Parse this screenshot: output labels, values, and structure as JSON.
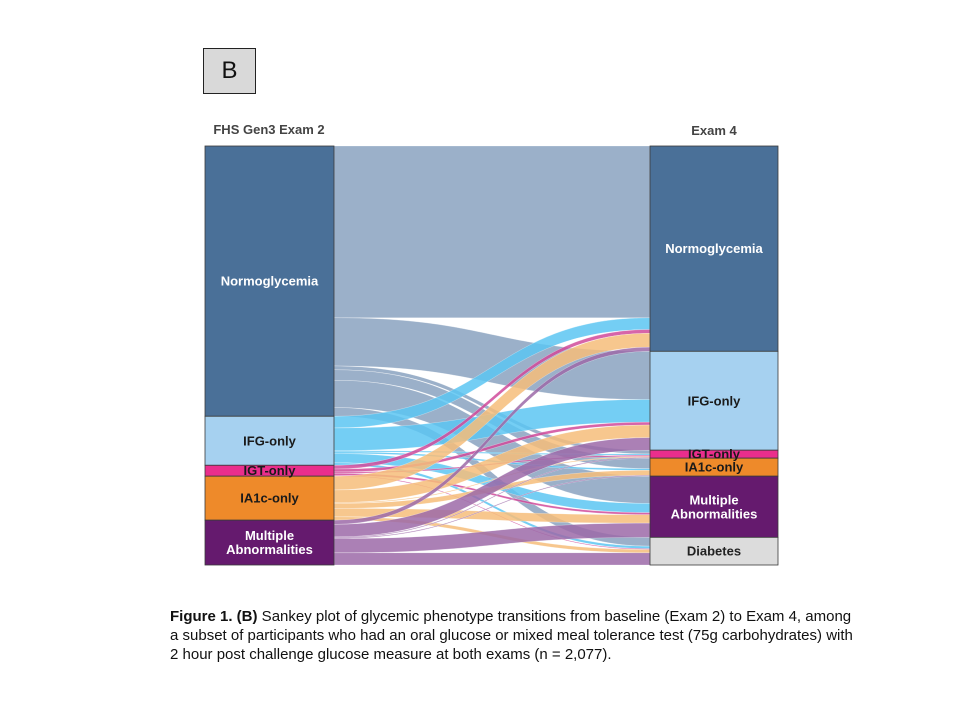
{
  "panel_label": "B",
  "caption": {
    "bold": "Figure 1. (B)",
    "text": " Sankey plot of glycemic phenotype transitions from baseline (Exam 2) to Exam 4, among a subset of participants who had an oral glucose or mixed meal tolerance test (75g carbohydrates) with 2 hour post challenge glucose measure at both exams (n = 2,077)."
  },
  "chart_data": {
    "type": "sankey",
    "title": "",
    "left_axis_label": "FHS Gen3 Exam 2",
    "right_axis_label": "Exam 4",
    "n_total": 2077,
    "units": "approximate percent of participants (estimated from bar heights)",
    "left_nodes": [
      {
        "id": "normo",
        "label": "Normoglycemia",
        "color": "#4a7098",
        "value": 64.5
      },
      {
        "id": "ifg",
        "label": "IFG-only",
        "color": "#a6d1f0",
        "value": 11.7
      },
      {
        "id": "igt",
        "label": "IGT-only",
        "color": "#ea2e8c",
        "value": 2.6
      },
      {
        "id": "ia1c",
        "label": "IA1c-only",
        "color": "#ee8a2a",
        "value": 10.5
      },
      {
        "id": "multi",
        "label": "Multiple\nAbnormalities",
        "color": "#651a6e",
        "value": 10.7
      }
    ],
    "right_nodes": [
      {
        "id": "normo",
        "label": "Normoglycemia",
        "color": "#4a7098",
        "value": 49.0
      },
      {
        "id": "ifg",
        "label": "IFG-only",
        "color": "#a6d1f0",
        "value": 23.6
      },
      {
        "id": "igt",
        "label": "IGT-only",
        "color": "#ea2e8c",
        "value": 1.9
      },
      {
        "id": "ia1c",
        "label": "IA1c-only",
        "color": "#ee8a2a",
        "value": 4.3
      },
      {
        "id": "multi",
        "label": "Multiple\nAbnormalities",
        "color": "#651a6e",
        "value": 14.6
      },
      {
        "id": "diab",
        "label": "Diabetes",
        "color": "#dcdcdc",
        "text_color": "#222222",
        "value": 6.6
      }
    ],
    "flows": [
      {
        "from": "normo",
        "to": "normo",
        "value": 41.0,
        "color": "#9bb0c9"
      },
      {
        "from": "normo",
        "to": "ifg",
        "value": 11.5,
        "color": "#9bb0c9"
      },
      {
        "from": "normo",
        "to": "igt",
        "value": 0.9,
        "color": "#9bb0c9"
      },
      {
        "from": "normo",
        "to": "ia1c",
        "value": 2.5,
        "color": "#9bb0c9"
      },
      {
        "from": "normo",
        "to": "multi",
        "value": 6.5,
        "color": "#9bb0c9"
      },
      {
        "from": "normo",
        "to": "diab",
        "value": 2.1,
        "color": "#9bb0c9"
      },
      {
        "from": "ifg",
        "to": "normo",
        "value": 2.8,
        "color": "#5cc6f2"
      },
      {
        "from": "ifg",
        "to": "ifg",
        "value": 5.4,
        "color": "#5cc6f2"
      },
      {
        "from": "ifg",
        "to": "igt",
        "value": 0.3,
        "color": "#5cc6f2"
      },
      {
        "from": "ifg",
        "to": "ia1c",
        "value": 0.4,
        "color": "#5cc6f2"
      },
      {
        "from": "ifg",
        "to": "multi",
        "value": 2.2,
        "color": "#5cc6f2"
      },
      {
        "from": "ifg",
        "to": "diab",
        "value": 0.6,
        "color": "#5cc6f2"
      },
      {
        "from": "igt",
        "to": "normo",
        "value": 0.9,
        "color": "#d04a9a"
      },
      {
        "from": "igt",
        "to": "ifg",
        "value": 0.7,
        "color": "#d04a9a"
      },
      {
        "from": "igt",
        "to": "igt",
        "value": 0.3,
        "color": "#d04a9a"
      },
      {
        "from": "igt",
        "to": "multi",
        "value": 0.5,
        "color": "#d04a9a"
      },
      {
        "from": "igt",
        "to": "diab",
        "value": 0.2,
        "color": "#d04a9a"
      },
      {
        "from": "ia1c",
        "to": "normo",
        "value": 3.3,
        "color": "#f6bd7a"
      },
      {
        "from": "ia1c",
        "to": "ifg",
        "value": 3.0,
        "color": "#f6bd7a"
      },
      {
        "from": "ia1c",
        "to": "igt",
        "value": 0.2,
        "color": "#f6bd7a"
      },
      {
        "from": "ia1c",
        "to": "ia1c",
        "value": 1.2,
        "color": "#f6bd7a"
      },
      {
        "from": "ia1c",
        "to": "multi",
        "value": 2.0,
        "color": "#f6bd7a"
      },
      {
        "from": "ia1c",
        "to": "diab",
        "value": 0.8,
        "color": "#f6bd7a"
      },
      {
        "from": "multi",
        "to": "normo",
        "value": 1.0,
        "color": "#9c6aa8"
      },
      {
        "from": "multi",
        "to": "ifg",
        "value": 3.0,
        "color": "#9c6aa8"
      },
      {
        "from": "multi",
        "to": "igt",
        "value": 0.2,
        "color": "#9c6aa8"
      },
      {
        "from": "multi",
        "to": "ia1c",
        "value": 0.2,
        "color": "#9c6aa8"
      },
      {
        "from": "multi",
        "to": "multi",
        "value": 3.4,
        "color": "#9c6aa8"
      },
      {
        "from": "multi",
        "to": "diab",
        "value": 2.9,
        "color": "#9c6aa8"
      }
    ]
  }
}
